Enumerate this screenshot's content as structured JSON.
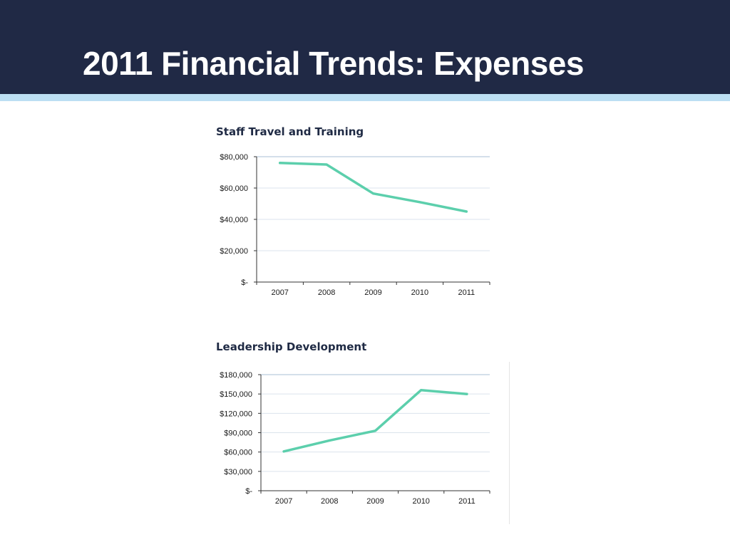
{
  "header": {
    "title": "2011 Financial Trends: Expenses",
    "background_color": "#202945",
    "stripe_color": "#bcdff3"
  },
  "chart_data": [
    {
      "type": "line",
      "title": "Staff Travel and Training",
      "categories": [
        "2007",
        "2008",
        "2009",
        "2010",
        "2011"
      ],
      "series": [
        {
          "values": [
            76000,
            75000,
            56500,
            51000,
            45000
          ],
          "color": "#5ccfac"
        }
      ],
      "ylim": [
        0,
        80000
      ],
      "yticks": [
        0,
        20000,
        40000,
        60000,
        80000
      ],
      "ytick_labels": [
        "$-",
        "$20,000",
        "$40,000",
        "$60,000",
        "$80,000"
      ],
      "xlabel": "",
      "ylabel": "",
      "grid": true,
      "legend": "none"
    },
    {
      "type": "line",
      "title": "Leadership Development",
      "categories": [
        "2007",
        "2008",
        "2009",
        "2010",
        "2011"
      ],
      "series": [
        {
          "values": [
            61000,
            78000,
            93000,
            156000,
            150000
          ],
          "color": "#5ccfac"
        }
      ],
      "ylim": [
        0,
        180000
      ],
      "yticks": [
        0,
        30000,
        60000,
        90000,
        120000,
        150000,
        180000
      ],
      "ytick_labels": [
        "$-",
        "$30,000",
        "$60,000",
        "$90,000",
        "$120,000",
        "$150,000",
        "$180,000"
      ],
      "xlabel": "",
      "ylabel": "",
      "grid": true,
      "legend": "none"
    }
  ]
}
